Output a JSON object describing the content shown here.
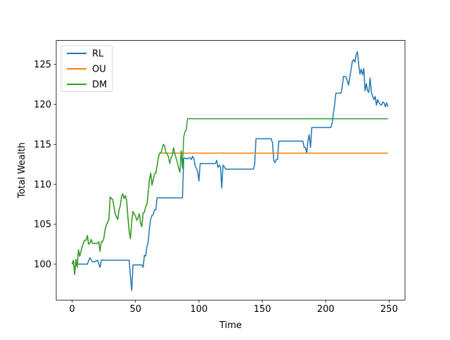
{
  "chart_data": {
    "type": "line",
    "title": "",
    "xlabel": "Time",
    "ylabel": "Total Wealth",
    "xlim": [
      -12.5,
      262.5
    ],
    "ylim": [
      95.5,
      128.0
    ],
    "x_ticks": [
      0,
      50,
      100,
      150,
      200,
      250
    ],
    "y_ticks": [
      100,
      105,
      110,
      115,
      120,
      125
    ],
    "grid": false,
    "legend_position": "top-left",
    "series": [
      {
        "name": "RL",
        "color": "#1f77b4",
        "x": [
          0,
          1,
          2,
          3,
          4,
          5,
          6,
          12,
          14,
          16,
          18,
          20,
          22,
          23,
          24,
          45,
          46,
          47,
          48,
          49,
          50,
          51,
          55,
          56,
          57,
          58,
          59,
          60,
          61,
          62,
          63,
          64,
          65,
          66,
          67,
          68,
          87,
          88,
          89,
          90,
          91,
          92,
          93,
          94,
          95,
          96,
          97,
          98,
          99,
          100,
          101,
          102,
          113,
          114,
          115,
          116,
          117,
          118,
          119,
          120,
          121,
          122,
          143,
          144,
          145,
          146,
          157,
          158,
          159,
          160,
          161,
          162,
          163,
          164,
          182,
          183,
          184,
          185,
          186,
          187,
          188,
          189,
          203,
          204,
          205,
          206,
          207,
          208,
          209,
          210,
          211,
          212,
          213,
          214,
          215,
          216,
          217,
          218,
          219,
          220,
          221,
          222,
          223,
          224,
          225,
          226,
          227,
          228,
          229,
          230,
          231,
          232,
          233,
          234,
          235,
          236,
          237,
          238,
          239,
          240,
          241,
          242,
          243,
          244,
          245,
          246,
          247,
          248,
          249
        ],
        "values": [
          100.0,
          100.2,
          99.3,
          100.0,
          100.0,
          100.0,
          100.0,
          100.0,
          100.8,
          100.3,
          100.3,
          100.5,
          99.6,
          100.5,
          100.5,
          100.5,
          98.4,
          96.7,
          99.9,
          99.9,
          99.9,
          99.9,
          99.9,
          99.6,
          101.1,
          101.0,
          102.2,
          102.8,
          104.5,
          105.7,
          106.1,
          106.2,
          106.8,
          106.8,
          108.3,
          108.3,
          108.3,
          113.2,
          113.3,
          113.2,
          113.2,
          113.3,
          113.3,
          113.1,
          113.5,
          113.2,
          112.3,
          112.0,
          111.6,
          110.4,
          112.6,
          112.6,
          112.6,
          113.0,
          112.1,
          112.4,
          112.2,
          109.5,
          112.4,
          112.2,
          111.9,
          111.9,
          111.9,
          112.5,
          115.7,
          115.7,
          115.7,
          115.2,
          113.0,
          112.7,
          113.1,
          113.1,
          115.4,
          115.4,
          115.4,
          114.6,
          114.6,
          113.9,
          115.5,
          116.2,
          114.6,
          117.1,
          117.1,
          117.1,
          117.6,
          118.8,
          120.0,
          121.4,
          121.4,
          121.4,
          121.4,
          121.4,
          122.2,
          123.5,
          123.5,
          123.4,
          123.0,
          122.4,
          123.4,
          124.4,
          125.4,
          125.6,
          125.3,
          126.2,
          126.6,
          125.0,
          123.8,
          124.4,
          123.7,
          124.5,
          121.7,
          122.6,
          121.7,
          121.5,
          123.3,
          121.5,
          121.0,
          120.6,
          121.0,
          119.9,
          120.6,
          120.2,
          120.0,
          119.9,
          120.3,
          120.2,
          119.7,
          120.2,
          119.7
        ]
      },
      {
        "name": "OU",
        "color": "#ff7f0e",
        "x": [
          0,
          1,
          2,
          3,
          4,
          5,
          6,
          7,
          8,
          9,
          10,
          11,
          12,
          13,
          14,
          15,
          16,
          17,
          18,
          19,
          20,
          21,
          22,
          23,
          24,
          25,
          26,
          27,
          28,
          29,
          30,
          31,
          32,
          33,
          34,
          35,
          36,
          37,
          38,
          39,
          40,
          41,
          42,
          43,
          44,
          45,
          46,
          47,
          48,
          49,
          50,
          51,
          52,
          53,
          54,
          55,
          56,
          57,
          58,
          59,
          60,
          61,
          62,
          63,
          64,
          65,
          66,
          67,
          68,
          69,
          70,
          71,
          72,
          73,
          249
        ],
        "values": [
          100.0,
          100.5,
          98.7,
          100.6,
          99.6,
          101.8,
          101.0,
          101.6,
          102.2,
          102.7,
          103.0,
          103.0,
          103.6,
          102.5,
          102.6,
          103.1,
          102.6,
          102.6,
          102.6,
          102.6,
          102.6,
          102.8,
          101.6,
          102.8,
          102.8,
          103.2,
          104.3,
          104.9,
          105.2,
          105.6,
          108.4,
          108.2,
          108.1,
          107.2,
          106.3,
          105.9,
          105.6,
          106.8,
          107.3,
          108.5,
          108.8,
          108.2,
          108.6,
          108.0,
          105.9,
          104.1,
          103.2,
          105.3,
          106.6,
          106.3,
          106.0,
          105.5,
          105.8,
          106.3,
          105.1,
          104.7,
          106.4,
          106.5,
          107.2,
          107.5,
          108.9,
          110.7,
          111.4,
          109.9,
          110.6,
          111.3,
          111.4,
          112.3,
          113.3,
          113.9,
          113.9,
          113.9,
          113.9,
          113.9,
          113.9
        ]
      },
      {
        "name": "DM",
        "color": "#2ca02c",
        "x": [
          0,
          1,
          2,
          3,
          4,
          5,
          6,
          7,
          8,
          9,
          10,
          11,
          12,
          13,
          14,
          15,
          16,
          17,
          18,
          19,
          20,
          21,
          22,
          23,
          24,
          25,
          26,
          27,
          28,
          29,
          30,
          31,
          32,
          33,
          34,
          35,
          36,
          37,
          38,
          39,
          40,
          41,
          42,
          43,
          44,
          45,
          46,
          47,
          48,
          49,
          50,
          51,
          52,
          53,
          54,
          55,
          56,
          57,
          58,
          59,
          60,
          61,
          62,
          63,
          64,
          65,
          66,
          67,
          68,
          69,
          70,
          71,
          72,
          73,
          74,
          75,
          76,
          77,
          78,
          79,
          80,
          81,
          82,
          83,
          84,
          85,
          86,
          87,
          88,
          89,
          90,
          91,
          249
        ],
        "values": [
          100.0,
          100.5,
          98.7,
          100.6,
          99.6,
          101.8,
          101.0,
          101.6,
          102.2,
          102.7,
          103.0,
          103.0,
          103.6,
          102.5,
          102.6,
          103.1,
          102.6,
          102.6,
          102.6,
          102.6,
          102.6,
          102.8,
          101.6,
          102.8,
          102.8,
          103.2,
          104.3,
          104.9,
          105.2,
          105.6,
          108.4,
          108.2,
          108.1,
          107.2,
          106.3,
          105.9,
          105.6,
          106.8,
          107.3,
          108.5,
          108.8,
          108.2,
          108.6,
          108.0,
          105.9,
          104.1,
          103.2,
          105.3,
          106.6,
          106.3,
          106.0,
          105.5,
          105.8,
          106.3,
          105.1,
          104.7,
          106.4,
          106.5,
          107.2,
          107.5,
          108.9,
          110.7,
          111.4,
          109.9,
          110.6,
          111.3,
          111.4,
          112.3,
          113.3,
          113.9,
          113.9,
          114.4,
          115.0,
          114.8,
          113.9,
          113.9,
          113.4,
          112.6,
          113.3,
          113.6,
          114.6,
          113.8,
          113.3,
          112.7,
          112.0,
          111.5,
          114.2,
          112.0,
          115.9,
          116.6,
          116.8,
          118.2,
          118.2
        ]
      }
    ]
  }
}
